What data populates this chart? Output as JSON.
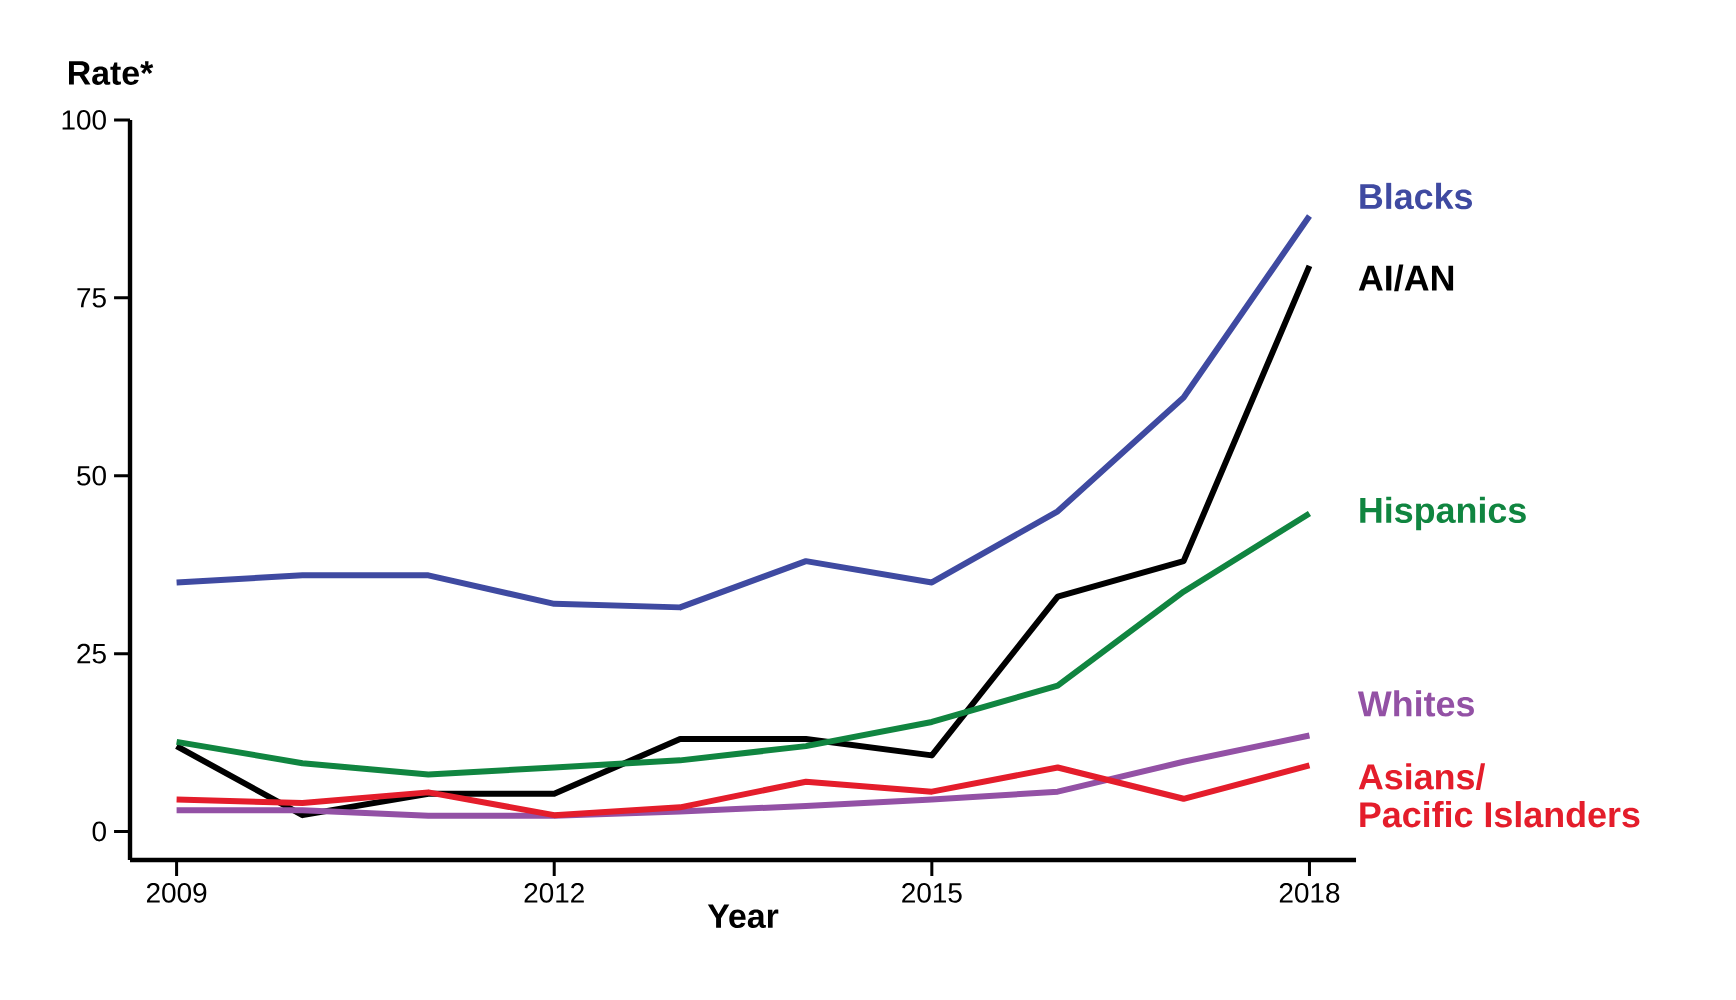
{
  "chart_data": {
    "type": "line",
    "ylabel": "Rate*",
    "xlabel": "Year",
    "x": [
      2009,
      2010,
      2011,
      2012,
      2013,
      2014,
      2015,
      2016,
      2017,
      2018
    ],
    "series": [
      {
        "name": "Blacks",
        "color": "#3f4aa1",
        "values": [
          35,
          36,
          36,
          32,
          31.5,
          38,
          35,
          45,
          61,
          86.5
        ]
      },
      {
        "name": "AI/AN",
        "color": "#000000",
        "values": [
          12,
          2.3,
          5.3,
          5.3,
          13,
          13,
          10.7,
          33,
          38,
          79.5
        ]
      },
      {
        "name": "Hispanics",
        "color": "#108540",
        "values": [
          12.6,
          9.6,
          8,
          9,
          10,
          12,
          15.4,
          20.5,
          33.7,
          44.7
        ]
      },
      {
        "name": "Whites",
        "color": "#9351a5",
        "values": [
          3,
          3,
          2.2,
          2.2,
          2.8,
          3.6,
          4.5,
          5.6,
          9.8,
          13.5
        ]
      },
      {
        "name": "Asians/\nPacific Islanders",
        "color": "#e41d2b",
        "values": [
          4.5,
          4,
          5.5,
          2.3,
          3.4,
          7,
          5.6,
          9,
          4.6,
          9.3
        ]
      }
    ],
    "xlim": [
      2008.63,
      2018.37
    ],
    "ylim": [
      -4,
      100
    ],
    "xticks": [
      2009,
      2012,
      2015,
      2018
    ],
    "yticks": [
      0,
      25,
      50,
      75,
      100
    ],
    "marker": "none",
    "line_style": "solid",
    "grid": false
  }
}
